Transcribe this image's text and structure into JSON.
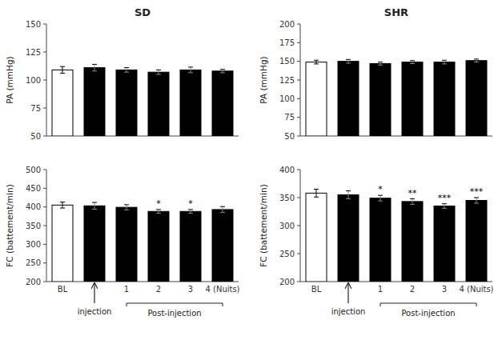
{
  "chart_data": [
    {
      "type": "bar",
      "title": "SD",
      "ylabel": "PA (mmHg)",
      "categories": [
        "BL",
        null,
        "1",
        "2",
        "3",
        "4 (Nuits)"
      ],
      "values": [
        109,
        111,
        109,
        107,
        109,
        108
      ],
      "errors": [
        3,
        3,
        2,
        2,
        2.5,
        1.5
      ],
      "colors": [
        "white",
        "black",
        "black",
        "black",
        "black",
        "black"
      ],
      "ylim": [
        50,
        150
      ],
      "yticks": [
        50,
        75,
        100,
        125,
        150
      ],
      "grid": false,
      "tick_labels": "y"
    },
    {
      "type": "bar",
      "title": "SHR",
      "ylabel": "PA (mmHg)",
      "categories": [
        "BL",
        null,
        "1",
        "2",
        "3",
        "4 (Nuits)"
      ],
      "values": [
        149,
        150,
        147,
        149,
        149,
        151
      ],
      "errors": [
        2.5,
        2.5,
        2,
        2,
        2.5,
        2
      ],
      "colors": [
        "white",
        "black",
        "black",
        "black",
        "black",
        "black"
      ],
      "ylim": [
        50,
        200
      ],
      "yticks": [
        50,
        75,
        100,
        125,
        150,
        175,
        200
      ],
      "grid": false,
      "tick_labels": "y"
    },
    {
      "type": "bar",
      "ylabel": "FC (battement/min)",
      "categories": [
        "BL",
        null,
        "1",
        "2",
        "3",
        "4 (Nuits)"
      ],
      "values": [
        405,
        403,
        399,
        388,
        388,
        393
      ],
      "errors": [
        8,
        9,
        7,
        5,
        5,
        8
      ],
      "bar_labels": [
        null,
        null,
        null,
        "*",
        "*",
        null
      ],
      "colors": [
        "white",
        "black",
        "black",
        "black",
        "black",
        "black"
      ],
      "ylim": [
        200,
        500
      ],
      "yticks": [
        200,
        250,
        300,
        350,
        400,
        450,
        500
      ],
      "grid": false,
      "annotations": [
        {
          "text": "injection",
          "from": 1,
          "to": 1
        },
        {
          "text": "Post-injection",
          "from": 2,
          "to": 5
        }
      ]
    },
    {
      "type": "bar",
      "ylabel": "FC (battement/min)",
      "categories": [
        "BL",
        null,
        "1",
        "2",
        "3",
        "4 (Nuits)"
      ],
      "values": [
        358,
        355,
        349,
        343,
        335,
        345
      ],
      "errors": [
        7,
        7,
        5,
        5,
        4,
        5
      ],
      "bar_labels": [
        null,
        null,
        "*",
        "**",
        "***",
        "***"
      ],
      "colors": [
        "white",
        "black",
        "black",
        "black",
        "black",
        "black"
      ],
      "ylim": [
        200,
        400
      ],
      "yticks": [
        200,
        250,
        300,
        350,
        400
      ],
      "grid": false,
      "annotations": [
        {
          "text": "injection",
          "from": 1,
          "to": 1
        },
        {
          "text": "Post-injection",
          "from": 2,
          "to": 5
        }
      ]
    }
  ]
}
